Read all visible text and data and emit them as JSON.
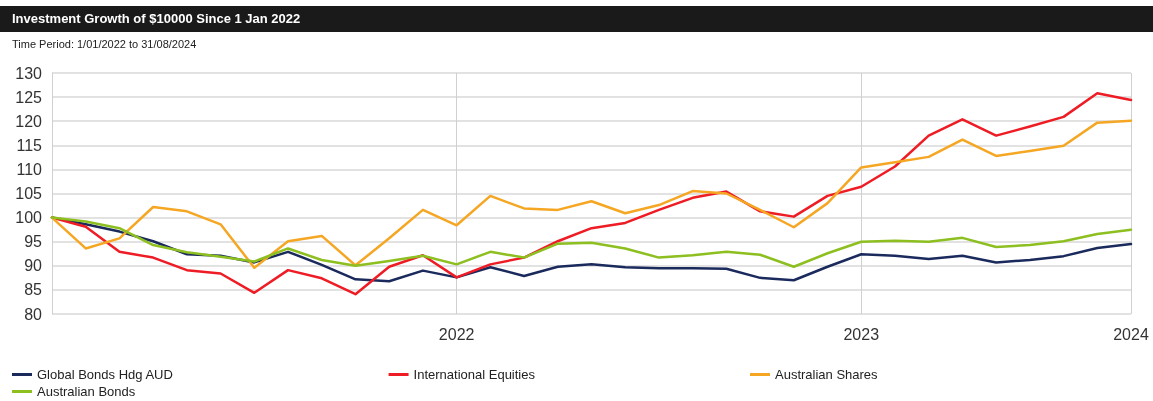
{
  "chart_data": {
    "type": "line",
    "title": "Investment Growth of $10000 Since 1 Jan 2022",
    "subtitle": "Time Period: 1/01/2022 to 31/08/2024",
    "categories": [
      null,
      null,
      null,
      null,
      null,
      null,
      null,
      null,
      null,
      null,
      null,
      null,
      "2022",
      null,
      null,
      null,
      null,
      null,
      null,
      null,
      null,
      null,
      null,
      null,
      "2023",
      null,
      null,
      null,
      null,
      null,
      null,
      null,
      "2024"
    ],
    "series": [
      {
        "name": "Global Bonds Hdg AUD",
        "color": "#1b2a5c",
        "values": [
          100,
          98.6,
          97.1,
          95.1,
          92.4,
          92.1,
          90.7,
          92.9,
          90.2,
          87.2,
          86.8,
          89.0,
          87.6,
          89.7,
          87.9,
          89.8,
          90.3,
          89.7,
          89.5,
          89.5,
          89.4,
          87.5,
          87.0,
          89.8,
          92.4,
          92.1,
          91.4,
          92.1,
          90.7,
          91.2,
          92.0,
          93.7,
          94.5
        ]
      },
      {
        "name": "International Equities",
        "color": "#ee1c24",
        "values": [
          100,
          98.1,
          92.9,
          91.7,
          89.1,
          88.4,
          84.4,
          89.1,
          87.4,
          84.1,
          89.8,
          92.2,
          87.6,
          90.3,
          91.7,
          95.1,
          97.8,
          98.9,
          101.6,
          104.1,
          105.4,
          101.3,
          100.2,
          104.5,
          106.4,
          110.6,
          117.0,
          120.4,
          117.0,
          118.9,
          120.9,
          125.8,
          124.4
        ]
      },
      {
        "name": "Australian Shares",
        "color": "#f5a623",
        "values": [
          100,
          93.6,
          95.7,
          102.2,
          101.3,
          98.6,
          89.6,
          95.1,
          96.2,
          90.1,
          95.7,
          101.6,
          98.4,
          104.5,
          101.9,
          101.6,
          103.4,
          100.9,
          102.6,
          105.5,
          105.0,
          101.6,
          98.0,
          103.0,
          110.4,
          111.5,
          112.6,
          116.2,
          112.8,
          113.8,
          114.9,
          119.7,
          120.1
        ]
      },
      {
        "name": "Australian Bonds",
        "color": "#8cbf1f",
        "values": [
          100,
          99.2,
          97.8,
          94.3,
          92.8,
          91.9,
          90.9,
          93.6,
          91.2,
          90.0,
          91.0,
          92.1,
          90.3,
          92.9,
          91.7,
          94.6,
          94.8,
          93.6,
          91.7,
          92.2,
          92.9,
          92.3,
          89.8,
          92.6,
          95.0,
          95.2,
          95.0,
          95.8,
          93.9,
          94.3,
          95.1,
          96.6,
          97.5
        ]
      }
    ],
    "ylim": [
      80,
      130
    ],
    "yticks": [
      80,
      85,
      90,
      95,
      100,
      105,
      110,
      115,
      120,
      125,
      130
    ],
    "grid": true,
    "legend": "bottom left",
    "marker": "none",
    "line_style": "solid"
  }
}
